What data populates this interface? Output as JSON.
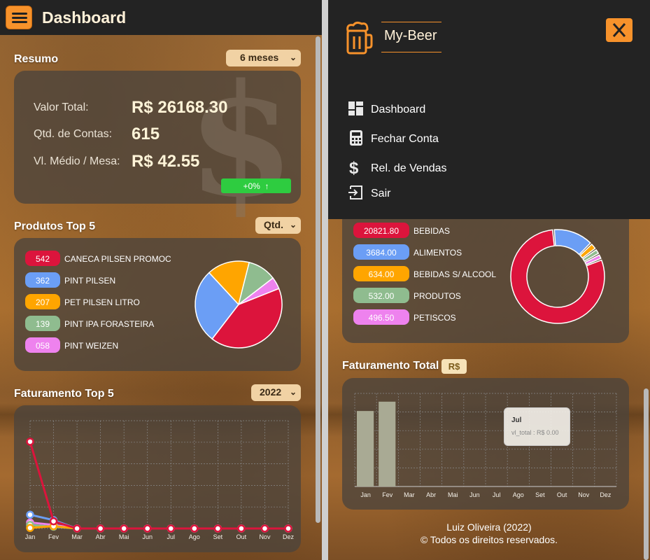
{
  "header": {
    "title": "Dashboard"
  },
  "resumo": {
    "title": "Resumo",
    "period": "6 meses",
    "rows": [
      {
        "label": "Valor Total:",
        "value": "R$ 26168.30"
      },
      {
        "label": "Qtd. de Contas:",
        "value": "615"
      },
      {
        "label": "Vl. Médio / Mesa:",
        "value": "R$ 42.55"
      }
    ],
    "trend": "+0%",
    "trend_icon": "arrow-up-icon"
  },
  "produtos": {
    "title": "Produtos Top 5",
    "select": "Qtd.",
    "items": [
      {
        "value": "542",
        "label": "CANECA PILSEN PROMOCAO",
        "color": "#dc143c"
      },
      {
        "value": "362",
        "label": "PINT PILSEN",
        "color": "#6b9ef5"
      },
      {
        "value": "207",
        "label": "PET PILSEN LITRO",
        "color": "#ffa500"
      },
      {
        "value": "139",
        "label": "PINT IPA FORASTEIRA",
        "color": "#8fbc8f"
      },
      {
        "value": "058",
        "label": "PINT WEIZEN",
        "color": "#ee82ee"
      }
    ]
  },
  "faturamento_top5": {
    "title": "Faturamento Top 5",
    "year": "2022"
  },
  "categorias": {
    "items": [
      {
        "value": "20821.80",
        "label": "BEBIDAS",
        "color": "#dc143c"
      },
      {
        "value": "3684.00",
        "label": "ALIMENTOS",
        "color": "#6b9ef5"
      },
      {
        "value": "634.00",
        "label": "BEBIDAS S/ ALCOOL",
        "color": "#ffa500"
      },
      {
        "value": "532.00",
        "label": "PRODUTOS",
        "color": "#8fbc8f"
      },
      {
        "value": "496.50",
        "label": "PETISCOS",
        "color": "#ee82ee"
      }
    ]
  },
  "faturamento_total": {
    "title": "Faturamento Total",
    "badge": "R$",
    "tooltip_title": "Jul",
    "tooltip_value": "vl_total : R$ 0.00"
  },
  "drawer": {
    "brand": "My-Beer",
    "items": [
      {
        "label": "Dashboard",
        "icon": "dashboard-icon"
      },
      {
        "label": "Fechar Conta",
        "icon": "calculator-icon"
      },
      {
        "label": "Rel. de Vendas",
        "icon": "dollar-icon"
      },
      {
        "label": "Sair",
        "icon": "exit-icon"
      }
    ]
  },
  "footer": {
    "author": "Luiz Oliveira (2022)",
    "rights": "© Todos os direitos reservados."
  },
  "chart_data": [
    {
      "type": "pie",
      "categories": [
        "CANECA PILSEN PROMOCAO",
        "PINT PILSEN",
        "PET PILSEN LITRO",
        "PINT IPA FORASTEIRA",
        "PINT WEIZEN"
      ],
      "values": [
        542,
        362,
        207,
        139,
        58
      ],
      "colors": [
        "#dc143c",
        "#6b9ef5",
        "#ffa500",
        "#8fbc8f",
        "#ee82ee"
      ]
    },
    {
      "type": "line",
      "categories": [
        "Jan",
        "Fev",
        "Mar",
        "Abr",
        "Mai",
        "Jun",
        "Jul",
        "Ago",
        "Set",
        "Out",
        "Nov",
        "Dez"
      ],
      "ylim": [
        0,
        1800
      ],
      "grid": true,
      "series": [
        {
          "color": "#dc143c",
          "values": [
            1450,
            120,
            0,
            0,
            0,
            0,
            0,
            0,
            0,
            0,
            0,
            0
          ]
        },
        {
          "color": "#6b9ef5",
          "values": [
            230,
            140,
            0,
            0,
            0,
            0,
            0,
            0,
            0,
            0,
            0,
            0
          ]
        },
        {
          "color": "#ffa500",
          "values": [
            10,
            40,
            0,
            0,
            0,
            0,
            0,
            0,
            0,
            0,
            0,
            0
          ]
        },
        {
          "color": "#8fbc8f",
          "values": [
            60,
            30,
            0,
            0,
            0,
            0,
            0,
            0,
            0,
            0,
            0,
            0
          ]
        },
        {
          "color": "#ee82ee",
          "values": [
            100,
            60,
            0,
            0,
            0,
            0,
            0,
            0,
            0,
            0,
            0,
            0
          ]
        }
      ]
    },
    {
      "type": "pie",
      "donut": true,
      "categories": [
        "BEBIDAS",
        "ALIMENTOS",
        "BEBIDAS S/ ALCOOL",
        "PRODUTOS",
        "PETISCOS"
      ],
      "values": [
        20821.8,
        3684.0,
        634.0,
        532.0,
        496.5
      ],
      "colors": [
        "#dc143c",
        "#6b9ef5",
        "#ffa500",
        "#8fbc8f",
        "#ee82ee"
      ]
    },
    {
      "type": "bar",
      "categories": [
        "Jan",
        "Fev",
        "Mar",
        "Abr",
        "Mai",
        "Jun",
        "Jul",
        "Ago",
        "Set",
        "Out",
        "Nov",
        "Dez"
      ],
      "values": [
        14600,
        16400,
        0,
        0,
        0,
        0,
        0,
        0,
        0,
        0,
        0,
        0
      ],
      "ylim": [
        0,
        18000
      ],
      "color": "#a9aa94",
      "grid": true
    }
  ]
}
